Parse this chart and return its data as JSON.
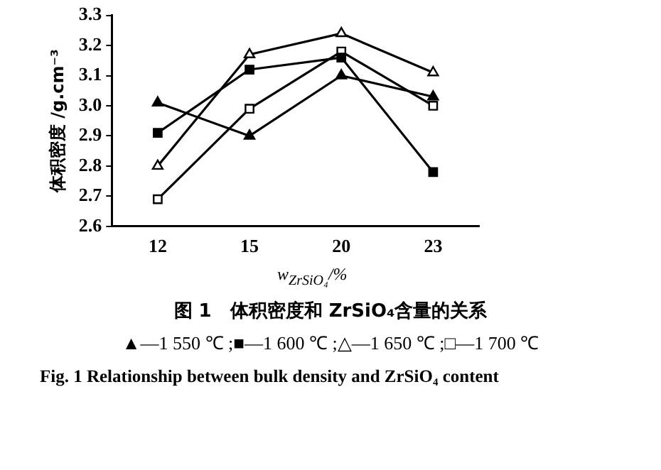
{
  "chart_data": {
    "type": "line",
    "title": "图 1　体积密度和 ZrSiO₄含量的关系",
    "subtitle": "▲—1 550 ℃ ;■—1 600 ℃ ;△—1 650 ℃ ;□—1 700 ℃",
    "xlabel": "w$_{ZrSiO₄}$/%",
    "ylabel": "体积密度 /g.cm⁻³",
    "categories": [
      "12",
      "15",
      "20",
      "23"
    ],
    "series": [
      {
        "color": "#000000",
        "marker": "triangle",
        "colors": [
          "#000000",
          "#000000",
          "#000000",
          "#000000"
        ],
        "values": [
          3.01,
          2.9,
          3.1,
          3.03
        ]
      },
      {
        "color": "#000000",
        "marker": "square",
        "colors": [
          "#000000",
          "#000000",
          "#000000",
          "#000000"
        ],
        "values": [
          2.91,
          3.12,
          3.16,
          2.78
        ]
      },
      {
        "color": "#000000",
        "marker": "triangle",
        "colors": [
          "#ffffff",
          "#ffffff",
          "#ffffff",
          "#ffffff"
        ],
        "values": [
          2.8,
          3.17,
          3.24,
          3.11
        ]
      },
      {
        "color": "#000000",
        "marker": "square",
        "colors": [
          "#ffffff",
          "#ffffff",
          "#ffffff",
          "#ffffff"
        ],
        "values": [
          2.69,
          2.99,
          3.18,
          3.0
        ]
      }
    ],
    "ylim": [
      2.6,
      3.3
    ],
    "yticks": [
      {
        "value": 2.6,
        "label": "2.6"
      },
      {
        "value": 2.7,
        "label": "2.7"
      },
      {
        "value": 2.8,
        "label": "2.8"
      },
      {
        "value": 2.9,
        "label": "2.9"
      },
      {
        "value": 3.0,
        "label": "3.0"
      },
      {
        "value": 3.1,
        "label": "3.1"
      },
      {
        "value": 3.2,
        "label": "3.2"
      },
      {
        "value": 3.3,
        "label": "3.3"
      }
    ],
    "grid": false,
    "line_style": "solid",
    "annotations": [
      "Fig. 1 Relationship between bulk density and ZrSiO₄ content"
    ]
  }
}
